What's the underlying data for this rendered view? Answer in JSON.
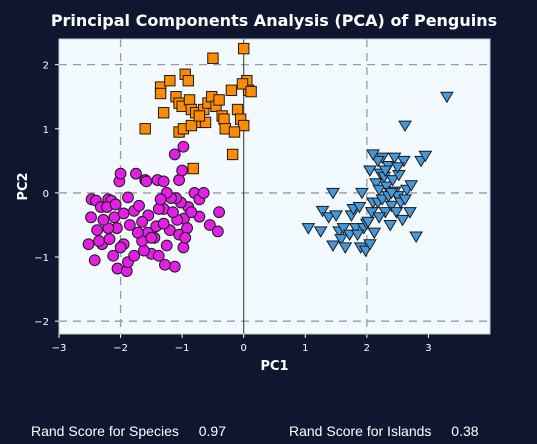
{
  "chart_data": {
    "type": "scatter",
    "title": "Principal Components Analysis (PCA) of Penguins",
    "xlabel": "PC1",
    "ylabel": "PC2",
    "xlim": [
      -3,
      4
    ],
    "ylim": [
      -2.2,
      2.4
    ],
    "x_ticks": [
      -3,
      -2,
      -1,
      0,
      1,
      2,
      3
    ],
    "y_ticks": [
      -2,
      -1,
      0,
      1,
      2
    ],
    "x_tick_labels": [
      "−3",
      "−2",
      "−1",
      "0",
      "1",
      "2",
      "3"
    ],
    "y_tick_labels": [
      "−2",
      "−1",
      "0",
      "1",
      "2"
    ],
    "reference_lines_x": [
      -2,
      2
    ],
    "reference_lines_y": [
      -2,
      0,
      2
    ],
    "zero_line_x": 0,
    "grid": false,
    "legend": "none",
    "series": [
      {
        "marker": "circle",
        "color": "#e51ee5",
        "points": [
          [
            -2.47,
            -0.1
          ],
          [
            -2.4,
            -0.12
          ],
          [
            -2.32,
            -0.22
          ],
          [
            -2.2,
            -0.1
          ],
          [
            -2.02,
            0.18
          ],
          [
            -2.0,
            0.3
          ],
          [
            -1.75,
            0.3
          ],
          [
            -1.6,
            0.2
          ],
          [
            -1.58,
            0.18
          ],
          [
            -1.4,
            0.2
          ],
          [
            -1.3,
            0.18
          ],
          [
            -1.05,
            0.2
          ],
          [
            -1.0,
            0.35
          ],
          [
            -1.12,
            0.6
          ],
          [
            -0.98,
            0.72
          ],
          [
            -0.8,
            0.0
          ],
          [
            -0.72,
            -0.1
          ],
          [
            -0.65,
            0.0
          ],
          [
            -0.55,
            -0.5
          ],
          [
            -0.42,
            -0.6
          ],
          [
            -0.4,
            -0.3
          ],
          [
            -0.72,
            -0.37
          ],
          [
            -0.9,
            -0.22
          ],
          [
            -0.97,
            -0.4
          ],
          [
            -1.02,
            -0.15
          ],
          [
            -1.1,
            -0.08
          ],
          [
            -1.18,
            -0.08
          ],
          [
            -1.25,
            0.0
          ],
          [
            -1.3,
            -0.25
          ],
          [
            -1.38,
            -0.25
          ],
          [
            -1.42,
            -0.52
          ],
          [
            -1.45,
            -0.7
          ],
          [
            -1.5,
            -0.95
          ],
          [
            -1.56,
            -0.62
          ],
          [
            -1.62,
            -0.9
          ],
          [
            -1.65,
            -0.75
          ],
          [
            -1.72,
            -0.62
          ],
          [
            -1.78,
            -0.28
          ],
          [
            -1.85,
            -0.5
          ],
          [
            -1.88,
            -0.07
          ],
          [
            -1.95,
            -0.8
          ],
          [
            -2.0,
            -0.85
          ],
          [
            -2.06,
            -0.55
          ],
          [
            -2.1,
            -0.38
          ],
          [
            -2.12,
            -0.98
          ],
          [
            -2.15,
            -0.12
          ],
          [
            -2.2,
            -0.55
          ],
          [
            -2.22,
            -0.22
          ],
          [
            -2.28,
            -0.42
          ],
          [
            -2.3,
            -0.8
          ],
          [
            -2.35,
            -0.75
          ],
          [
            -2.38,
            -0.58
          ],
          [
            -2.42,
            -1.05
          ],
          [
            -2.48,
            -0.38
          ],
          [
            -2.52,
            -0.8
          ],
          [
            -2.18,
            -0.72
          ],
          [
            -2.05,
            -1.18
          ],
          [
            -1.9,
            -1.22
          ],
          [
            -1.88,
            -1.08
          ],
          [
            -1.78,
            -0.98
          ],
          [
            -1.38,
            -0.98
          ],
          [
            -1.2,
            -0.58
          ],
          [
            -1.12,
            -1.15
          ],
          [
            -1.05,
            -0.65
          ],
          [
            -0.98,
            -0.85
          ],
          [
            -0.92,
            -0.55
          ],
          [
            -0.85,
            -0.3
          ],
          [
            -1.3,
            -0.48
          ],
          [
            -1.55,
            -0.35
          ],
          [
            -1.7,
            -0.2
          ],
          [
            -1.95,
            -0.32
          ],
          [
            -2.08,
            -0.18
          ],
          [
            -1.5,
            -0.7
          ],
          [
            -1.25,
            -0.82
          ],
          [
            -1.08,
            -0.42
          ],
          [
            -1.65,
            -0.45
          ],
          [
            -1.28,
            -1.12
          ],
          [
            -1.15,
            -0.3
          ],
          [
            -0.95,
            -0.7
          ],
          [
            -1.35,
            -0.1
          ]
        ]
      },
      {
        "marker": "square",
        "color": "#ff8c00",
        "points": [
          [
            -1.35,
            1.65
          ],
          [
            -1.35,
            1.55
          ],
          [
            -1.2,
            1.75
          ],
          [
            -1.1,
            1.5
          ],
          [
            -1.05,
            1.4
          ],
          [
            -1.0,
            1.35
          ],
          [
            -0.95,
            1.85
          ],
          [
            -0.9,
            1.75
          ],
          [
            -0.88,
            1.45
          ],
          [
            -0.85,
            1.3
          ],
          [
            -0.78,
            1.25
          ],
          [
            -0.7,
            1.1
          ],
          [
            -0.65,
            1.3
          ],
          [
            -0.58,
            1.4
          ],
          [
            -0.52,
            1.5
          ],
          [
            -0.5,
            2.1
          ],
          [
            -0.45,
            1.35
          ],
          [
            -0.4,
            1.45
          ],
          [
            -0.35,
            1.2
          ],
          [
            -0.32,
            1.15
          ],
          [
            -0.2,
            1.6
          ],
          [
            -0.1,
            1.3
          ],
          [
            -0.05,
            1.15
          ],
          [
            0.0,
            1.05
          ],
          [
            0.05,
            1.75
          ],
          [
            0.08,
            1.6
          ],
          [
            0.0,
            2.25
          ],
          [
            -0.02,
            1.7
          ],
          [
            -0.18,
            0.6
          ],
          [
            -0.82,
            0.38
          ],
          [
            -1.05,
            0.95
          ],
          [
            -1.3,
            1.25
          ],
          [
            -1.6,
            1.0
          ],
          [
            -0.98,
            1.0
          ],
          [
            -0.85,
            1.05
          ],
          [
            -0.62,
            1.1
          ],
          [
            -0.3,
            1.0
          ],
          [
            -0.15,
            0.95
          ],
          [
            0.12,
            1.58
          ],
          [
            -0.72,
            1.2
          ]
        ]
      },
      {
        "marker": "triangle-down",
        "color": "#4499dd",
        "points": [
          [
            1.05,
            -0.55
          ],
          [
            1.25,
            -0.6
          ],
          [
            1.28,
            -0.28
          ],
          [
            1.38,
            -0.38
          ],
          [
            1.45,
            -0.82
          ],
          [
            1.5,
            -0.35
          ],
          [
            1.55,
            -0.6
          ],
          [
            1.58,
            -0.72
          ],
          [
            1.62,
            -0.55
          ],
          [
            1.65,
            -0.85
          ],
          [
            1.72,
            -0.65
          ],
          [
            1.75,
            -0.35
          ],
          [
            1.78,
            -0.25
          ],
          [
            1.82,
            -0.55
          ],
          [
            1.88,
            -0.22
          ],
          [
            1.9,
            -0.85
          ],
          [
            1.95,
            -0.55
          ],
          [
            1.98,
            -0.9
          ],
          [
            2.0,
            -0.48
          ],
          [
            2.05,
            -0.8
          ],
          [
            2.08,
            -0.3
          ],
          [
            2.1,
            -0.15
          ],
          [
            2.12,
            -0.62
          ],
          [
            2.15,
            0.15
          ],
          [
            2.18,
            -0.15
          ],
          [
            2.2,
            0.05
          ],
          [
            2.22,
            0.3
          ],
          [
            2.25,
            -0.1
          ],
          [
            2.28,
            0.25
          ],
          [
            2.3,
            -0.3
          ],
          [
            2.32,
            0.1
          ],
          [
            2.35,
            0.42
          ],
          [
            2.38,
            -0.5
          ],
          [
            2.4,
            -0.2
          ],
          [
            2.42,
            0.2
          ],
          [
            2.45,
            0.02
          ],
          [
            2.48,
            -0.3
          ],
          [
            2.5,
            -0.05
          ],
          [
            2.52,
            0.28
          ],
          [
            2.55,
            -0.15
          ],
          [
            2.58,
            -0.42
          ],
          [
            2.6,
            0.5
          ],
          [
            2.62,
            -0.1
          ],
          [
            2.65,
            0.05
          ],
          [
            2.7,
            -0.3
          ],
          [
            2.72,
            0.12
          ],
          [
            2.8,
            -0.68
          ],
          [
            2.3,
            0.35
          ],
          [
            2.25,
            0.55
          ],
          [
            2.35,
            -0.05
          ],
          [
            2.45,
            0.55
          ],
          [
            2.5,
            0.4
          ],
          [
            2.05,
            0.35
          ],
          [
            1.92,
            0.0
          ],
          [
            2.18,
            0.5
          ],
          [
            2.1,
            0.6
          ],
          [
            2.62,
            1.05
          ],
          [
            2.88,
            0.5
          ],
          [
            2.95,
            0.58
          ],
          [
            3.3,
            1.5
          ],
          [
            1.45,
            0.0
          ],
          [
            2.2,
            -0.38
          ],
          [
            2.02,
            -0.45
          ],
          [
            1.85,
            -0.65
          ],
          [
            2.4,
            0.0
          ]
        ]
      }
    ]
  },
  "scores": {
    "species_label": "Rand Score for Species",
    "species_value": "0.97",
    "islands_label": "Rand Score for Islands",
    "islands_value": "0.38"
  }
}
